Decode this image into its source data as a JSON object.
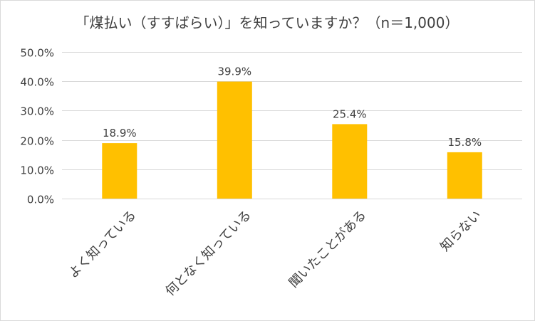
{
  "chart_data": {
    "type": "bar",
    "title": "「煤払い（すすばらい）」を知っていますか？（n＝1,000）",
    "xlabel": "",
    "ylabel": "",
    "categories": [
      "よく知っている",
      "何となく知っている",
      "聞いたことがある",
      "知らない"
    ],
    "values": [
      18.9,
      39.9,
      25.4,
      15.8
    ],
    "data_labels": [
      "18.9%",
      "39.9%",
      "25.4%",
      "15.8%"
    ],
    "ylim": [
      0,
      50
    ],
    "y_ticks": [
      0,
      10,
      20,
      30,
      40,
      50
    ],
    "y_tick_labels": [
      "0.0%",
      "10.0%",
      "20.0%",
      "30.0%",
      "40.0%",
      "50.0%"
    ],
    "grid": true,
    "legend": "none",
    "bar_color": "#ffc000"
  }
}
